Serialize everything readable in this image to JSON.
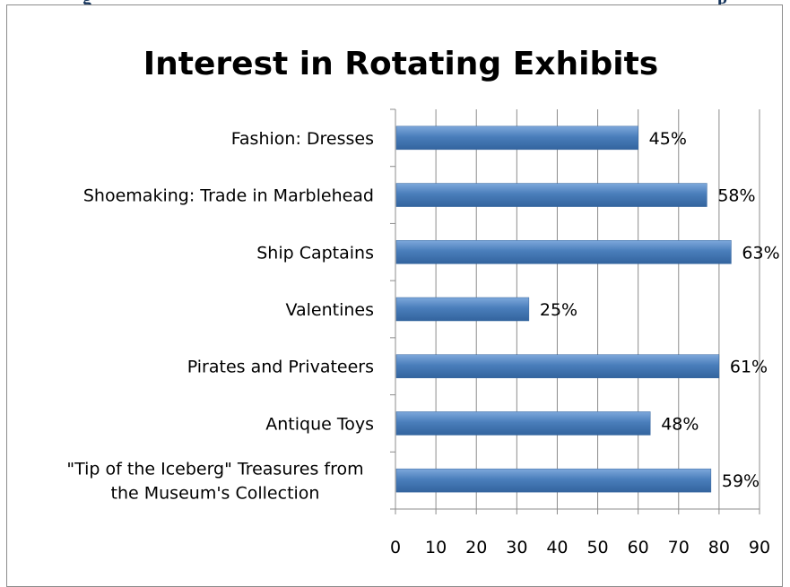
{
  "header": {
    "left_text": "g",
    "right_text": "p"
  },
  "chart_data": {
    "type": "bar",
    "orientation": "horizontal",
    "title": "Interest in Rotating Exhibits",
    "categories": [
      "Fashion: Dresses",
      "Shoemaking: Trade in Marblehead",
      "Ship Captains",
      "Valentines",
      "Pirates and Privateers",
      "Antique Toys",
      "\"Tip of the Iceberg\" Treasures from the Museum's Collection"
    ],
    "category_label_lines": [
      [
        "Fashion: Dresses"
      ],
      [
        "Shoemaking: Trade in Marblehead"
      ],
      [
        "Ship Captains"
      ],
      [
        "Valentines"
      ],
      [
        "Pirates and Privateers"
      ],
      [
        "Antique Toys"
      ],
      [
        "\"Tip of the Iceberg\" Treasures from",
        "the Museum's Collection"
      ]
    ],
    "values": [
      60,
      77,
      83,
      33,
      80,
      63,
      78
    ],
    "data_labels": [
      "45%",
      "58%",
      "63%",
      "25%",
      "61%",
      "48%",
      "59%"
    ],
    "xlim": [
      0,
      90
    ],
    "x_ticks": [
      0,
      10,
      20,
      30,
      40,
      50,
      60,
      70,
      80,
      90
    ],
    "grid": "vertical",
    "legend": "none",
    "bar_color": "#4a7ebb",
    "bar_color_light": "#7ea8db",
    "bar_color_dark": "#33649e"
  }
}
